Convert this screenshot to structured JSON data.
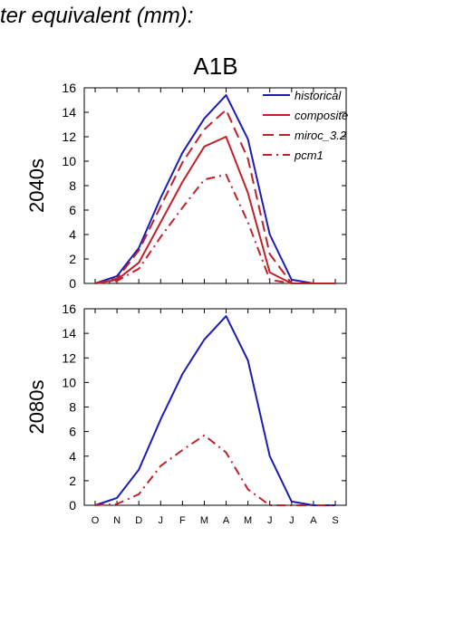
{
  "page": {
    "title": "ter equivalent (mm):"
  },
  "chart_data": [
    {
      "type": "line",
      "title": "A1B",
      "ylabel": "2040s",
      "ylim": [
        0,
        16
      ],
      "yticks": [
        0,
        2,
        4,
        6,
        8,
        10,
        12,
        14,
        16
      ],
      "categories": [
        "O",
        "N",
        "D",
        "J",
        "F",
        "M",
        "A",
        "M",
        "J",
        "J",
        "A",
        "S"
      ],
      "legend": "top-right",
      "series": [
        {
          "name": "historical",
          "color": "#1c1cb4",
          "dash": "solid",
          "values": [
            0,
            0.6,
            2.9,
            7.0,
            10.7,
            13.5,
            15.4,
            11.8,
            4.0,
            0.3,
            0,
            0
          ]
        },
        {
          "name": "composite",
          "color": "#c0202a",
          "dash": "solid",
          "values": [
            0,
            0.3,
            1.7,
            5.0,
            8.3,
            11.2,
            12.0,
            7.4,
            0.9,
            0,
            0,
            0
          ]
        },
        {
          "name": "miroc_3.2",
          "color": "#c0202a",
          "dash": "dash",
          "values": [
            0,
            0.4,
            2.7,
            6.3,
            9.9,
            12.6,
            14.2,
            10.2,
            2.4,
            0,
            0,
            0
          ]
        },
        {
          "name": "pcm1",
          "color": "#c0202a",
          "dash": "dashdot",
          "values": [
            0,
            0.2,
            1.2,
            3.8,
            6.2,
            8.5,
            8.9,
            5.0,
            0.3,
            0,
            0,
            0
          ]
        }
      ]
    },
    {
      "type": "line",
      "title": "",
      "ylabel": "2080s",
      "ylim": [
        0,
        16
      ],
      "yticks": [
        0,
        2,
        4,
        6,
        8,
        10,
        12,
        14,
        16
      ],
      "categories": [
        "O",
        "N",
        "D",
        "J",
        "F",
        "M",
        "A",
        "M",
        "J",
        "J",
        "A",
        "S"
      ],
      "series": [
        {
          "name": "historical",
          "color": "#1c1cb4",
          "dash": "solid",
          "values": [
            0,
            0.6,
            2.9,
            7.0,
            10.7,
            13.5,
            15.4,
            11.8,
            4.0,
            0.3,
            0,
            0
          ]
        },
        {
          "name": "pcm1",
          "color": "#c0202a",
          "dash": "dashdot",
          "values": [
            0,
            0.1,
            0.9,
            3.2,
            4.5,
            5.7,
            4.3,
            1.3,
            0,
            0,
            0,
            0
          ]
        }
      ]
    }
  ]
}
